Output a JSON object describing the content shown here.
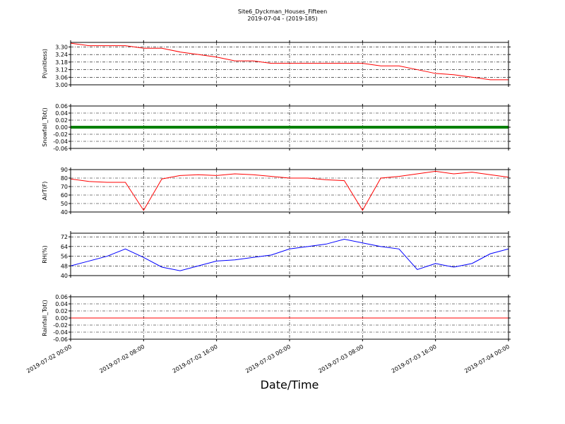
{
  "title": "Site6_Dyckman_Houses_Fifteen",
  "subtitle": "2019-07-04 - (2019-185)",
  "xlabel": "Date/Time",
  "chart_data": [
    {
      "type": "line",
      "ylabel": "P(unitless)",
      "x": [
        "2019-07-02 00:00",
        "2019-07-02 02:00",
        "2019-07-02 04:00",
        "2019-07-02 06:00",
        "2019-07-02 08:00",
        "2019-07-02 10:00",
        "2019-07-02 12:00",
        "2019-07-02 14:00",
        "2019-07-02 16:00",
        "2019-07-02 18:00",
        "2019-07-02 20:00",
        "2019-07-02 22:00",
        "2019-07-03 00:00",
        "2019-07-03 02:00",
        "2019-07-03 04:00",
        "2019-07-03 06:00",
        "2019-07-03 08:00",
        "2019-07-03 10:00",
        "2019-07-03 12:00",
        "2019-07-03 14:00",
        "2019-07-03 16:00",
        "2019-07-03 18:00",
        "2019-07-03 20:00",
        "2019-07-03 22:00",
        "2019-07-04 00:00"
      ],
      "series": [
        {
          "color": "#ff0000",
          "values": [
            3.33,
            3.31,
            3.31,
            3.31,
            3.29,
            3.29,
            3.26,
            3.24,
            3.22,
            3.19,
            3.19,
            3.17,
            3.17,
            3.17,
            3.17,
            3.17,
            3.17,
            3.15,
            3.15,
            3.12,
            3.09,
            3.08,
            3.06,
            3.04,
            3.04
          ]
        }
      ],
      "ylim": [
        3.0,
        3.336
      ],
      "yticks": [
        {
          "value": 3.0,
          "label": "3.00"
        },
        3.06,
        3.12,
        3.18,
        3.24,
        {
          "value": 3.3,
          "label": "3.30"
        }
      ],
      "grid": true
    },
    {
      "type": "line",
      "ylabel": "Snowfall_Tot()",
      "x": [
        "2019-07-02 00:00",
        "2019-07-02 02:00",
        "2019-07-02 04:00",
        "2019-07-02 06:00",
        "2019-07-02 08:00",
        "2019-07-02 10:00",
        "2019-07-02 12:00",
        "2019-07-02 14:00",
        "2019-07-02 16:00",
        "2019-07-02 18:00",
        "2019-07-02 20:00",
        "2019-07-02 22:00",
        "2019-07-03 00:00",
        "2019-07-03 02:00",
        "2019-07-03 04:00",
        "2019-07-03 06:00",
        "2019-07-03 08:00",
        "2019-07-03 10:00",
        "2019-07-03 12:00",
        "2019-07-03 14:00",
        "2019-07-03 16:00",
        "2019-07-03 18:00",
        "2019-07-03 20:00",
        "2019-07-03 22:00",
        "2019-07-04 00:00"
      ],
      "series": [
        {
          "color": "#008000",
          "values": [
            0,
            0,
            0,
            0,
            0,
            0,
            0,
            0,
            0,
            0,
            0,
            0,
            0,
            0,
            0,
            0,
            0,
            0,
            0,
            0,
            0,
            0,
            0,
            0,
            0
          ]
        }
      ],
      "ylim": [
        -0.06,
        0.06
      ],
      "yticks": [
        -0.06,
        -0.04,
        -0.02,
        {
          "value": 0,
          "label": "0.00"
        },
        0.02,
        0.04,
        0.06
      ],
      "grid": true
    },
    {
      "type": "line",
      "ylabel": "AirT(F)",
      "x": [
        "2019-07-02 00:00",
        "2019-07-02 02:00",
        "2019-07-02 04:00",
        "2019-07-02 06:00",
        "2019-07-02 08:00",
        "2019-07-02 10:00",
        "2019-07-02 12:00",
        "2019-07-02 14:00",
        "2019-07-02 16:00",
        "2019-07-02 18:00",
        "2019-07-02 20:00",
        "2019-07-02 22:00",
        "2019-07-03 00:00",
        "2019-07-03 02:00",
        "2019-07-03 04:00",
        "2019-07-03 06:00",
        "2019-07-03 08:00",
        "2019-07-03 10:00",
        "2019-07-03 12:00",
        "2019-07-03 14:00",
        "2019-07-03 16:00",
        "2019-07-03 18:00",
        "2019-07-03 20:00",
        "2019-07-03 22:00",
        "2019-07-04 00:00"
      ],
      "series": [
        {
          "color": "#ff0000",
          "values": [
            79,
            76,
            75,
            75,
            42,
            79,
            83,
            84,
            83,
            85,
            84,
            82,
            80,
            80,
            78,
            77,
            42,
            80,
            82,
            85,
            88,
            85,
            87,
            84,
            81
          ]
        }
      ],
      "ylim": [
        40,
        90
      ],
      "yticks": [
        40,
        50,
        60,
        70,
        80,
        90
      ],
      "grid": true
    },
    {
      "type": "line",
      "ylabel": "RH(%)",
      "x": [
        "2019-07-02 00:00",
        "2019-07-02 02:00",
        "2019-07-02 04:00",
        "2019-07-02 06:00",
        "2019-07-02 08:00",
        "2019-07-02 10:00",
        "2019-07-02 12:00",
        "2019-07-02 14:00",
        "2019-07-02 16:00",
        "2019-07-02 18:00",
        "2019-07-02 20:00",
        "2019-07-02 22:00",
        "2019-07-03 00:00",
        "2019-07-03 02:00",
        "2019-07-03 04:00",
        "2019-07-03 06:00",
        "2019-07-03 08:00",
        "2019-07-03 10:00",
        "2019-07-03 12:00",
        "2019-07-03 14:00",
        "2019-07-03 16:00",
        "2019-07-03 18:00",
        "2019-07-03 20:00",
        "2019-07-03 22:00",
        "2019-07-04 00:00"
      ],
      "series": [
        {
          "color": "#0000ff",
          "values": [
            48,
            52,
            56,
            62,
            55,
            47,
            44,
            48,
            52,
            53,
            55,
            57,
            62,
            64,
            66,
            70,
            67,
            64,
            62,
            45,
            50,
            47,
            50,
            58,
            62
          ]
        }
      ],
      "ylim": [
        40,
        75
      ],
      "yticks": [
        40,
        48,
        56,
        64,
        72
      ],
      "grid": true
    },
    {
      "type": "line",
      "ylabel": "Rainfall_Tot()",
      "x": [
        "2019-07-02 00:00",
        "2019-07-02 02:00",
        "2019-07-02 04:00",
        "2019-07-02 06:00",
        "2019-07-02 08:00",
        "2019-07-02 10:00",
        "2019-07-02 12:00",
        "2019-07-02 14:00",
        "2019-07-02 16:00",
        "2019-07-02 18:00",
        "2019-07-02 20:00",
        "2019-07-02 22:00",
        "2019-07-03 00:00",
        "2019-07-03 02:00",
        "2019-07-03 04:00",
        "2019-07-03 06:00",
        "2019-07-03 08:00",
        "2019-07-03 10:00",
        "2019-07-03 12:00",
        "2019-07-03 14:00",
        "2019-07-03 16:00",
        "2019-07-03 18:00",
        "2019-07-03 20:00",
        "2019-07-03 22:00",
        "2019-07-04 00:00"
      ],
      "series": [
        {
          "color": "#ff0000",
          "values": [
            0,
            0,
            0,
            0,
            0,
            0,
            0,
            0,
            0,
            0,
            0,
            0,
            0,
            0,
            0,
            0,
            0,
            0,
            0,
            0,
            0,
            0,
            0,
            0,
            0
          ]
        }
      ],
      "ylim": [
        -0.06,
        0.06
      ],
      "yticks": [
        -0.06,
        -0.04,
        -0.02,
        {
          "value": 0,
          "label": "0.00"
        },
        0.02,
        0.04,
        0.06
      ],
      "grid": true,
      "xlim": [
        "2019-07-02 00:00",
        "2019-07-04 00:00"
      ],
      "xticks": [
        "2019-07-02 00:00",
        "2019-07-02 08:00",
        "2019-07-02 16:00",
        "2019-07-03 00:00",
        "2019-07-03 08:00",
        "2019-07-03 16:00",
        "2019-07-04 00:00"
      ]
    }
  ]
}
